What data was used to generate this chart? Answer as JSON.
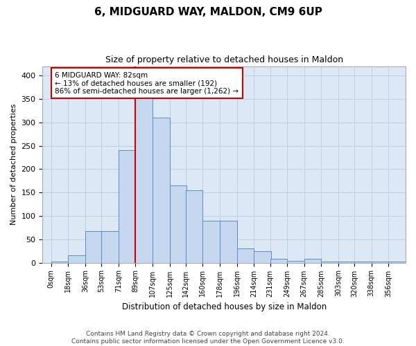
{
  "title": "6, MIDGUARD WAY, MALDON, CM9 6UP",
  "subtitle": "Size of property relative to detached houses in Maldon",
  "xlabel": "Distribution of detached houses by size in Maldon",
  "ylabel": "Number of detached properties",
  "bin_labels": [
    "0sqm",
    "18sqm",
    "36sqm",
    "53sqm",
    "71sqm",
    "89sqm",
    "107sqm",
    "125sqm",
    "142sqm",
    "160sqm",
    "178sqm",
    "196sqm",
    "214sqm",
    "231sqm",
    "249sqm",
    "267sqm",
    "285sqm",
    "303sqm",
    "320sqm",
    "338sqm",
    "356sqm"
  ],
  "bar_heights": [
    2,
    15,
    68,
    68,
    240,
    375,
    310,
    165,
    155,
    90,
    90,
    30,
    25,
    8,
    4,
    8,
    2,
    2,
    2,
    2,
    2
  ],
  "bar_color": "#c5d8f0",
  "bar_edge_color": "#5b8cc8",
  "property_line_x": 89,
  "bin_width": 18,
  "bin_starts": [
    0,
    18,
    36,
    53,
    71,
    89,
    107,
    125,
    142,
    160,
    178,
    196,
    214,
    231,
    249,
    267,
    285,
    303,
    320,
    338,
    356
  ],
  "annotation_text": "6 MIDGUARD WAY: 82sqm\n← 13% of detached houses are smaller (192)\n86% of semi-detached houses are larger (1,262) →",
  "annotation_box_color": "#ffffff",
  "annotation_box_edge": "#cc0000",
  "property_line_color": "#cc0000",
  "grid_color": "#c0d0e8",
  "background_color": "#dce9f5",
  "footer_text": "Contains HM Land Registry data © Crown copyright and database right 2024.\nContains public sector information licensed under the Open Government Licence v3.0.",
  "ylim": [
    0,
    420
  ],
  "yticks": [
    0,
    50,
    100,
    150,
    200,
    250,
    300,
    350,
    400
  ],
  "xlim_left": -9,
  "xlim_right": 374
}
